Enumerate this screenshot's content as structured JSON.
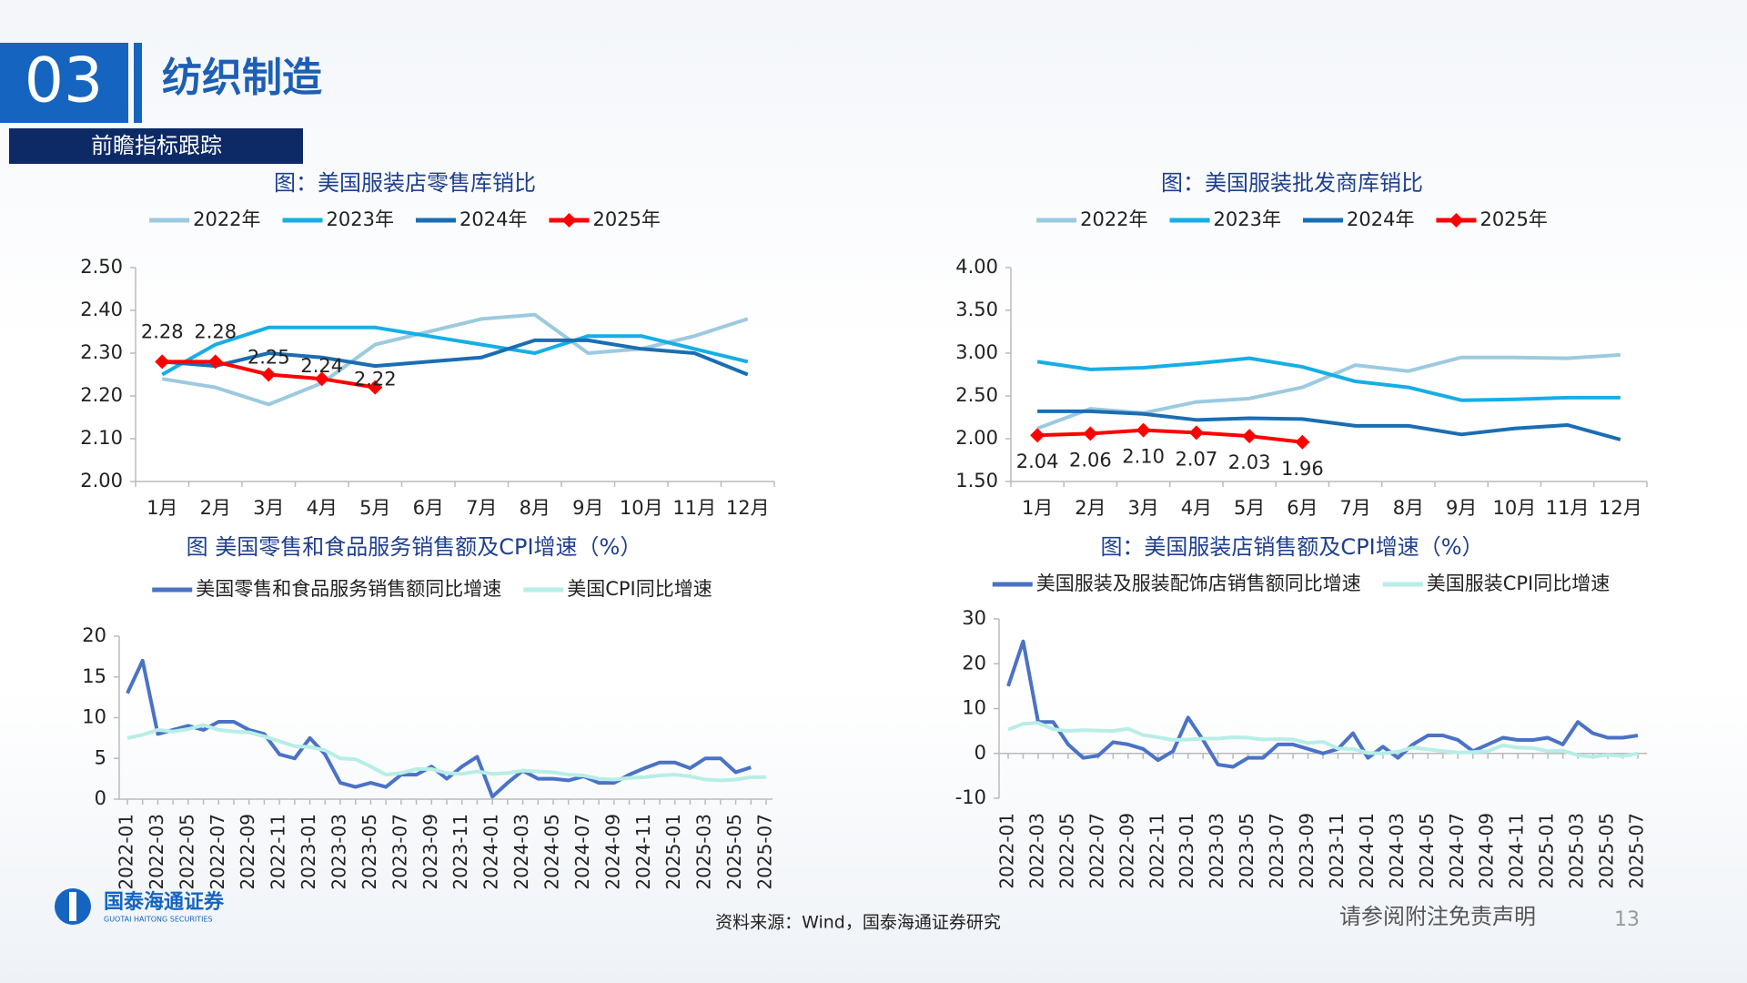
{
  "header": {
    "number": "03",
    "title": "纺织制造",
    "subtitle": "前瞻指标跟踪"
  },
  "footer": {
    "source": "资料来源：Wind，国泰海通证券研究",
    "disclaimer": "请参阅附注免责声明",
    "page": "13",
    "logo_cn": "国泰海通证券",
    "logo_en": "GUOTAI HAITONG SECURITIES"
  },
  "chart_data": [
    {
      "type": "line",
      "title": "图：美国服装店零售库销比",
      "categories": [
        "1月",
        "2月",
        "3月",
        "4月",
        "5月",
        "6月",
        "7月",
        "8月",
        "9月",
        "10月",
        "11月",
        "12月"
      ],
      "ylim": [
        2.0,
        2.5
      ],
      "yticks": [
        {
          "value": 2.0,
          "label": "2.00"
        },
        {
          "value": 2.1,
          "label": "2.10"
        },
        {
          "value": 2.2,
          "label": "2.20"
        },
        {
          "value": 2.3,
          "label": "2.30"
        },
        {
          "value": 2.4,
          "label": "2.40"
        },
        {
          "value": 2.5,
          "label": "2.50"
        }
      ],
      "series": [
        {
          "name": "2022年",
          "color": "#9ccadf",
          "values": [
            2.24,
            2.22,
            2.18,
            2.23,
            2.32,
            2.35,
            2.38,
            2.39,
            2.3,
            2.31,
            2.34,
            2.38
          ]
        },
        {
          "name": "2023年",
          "color": "#17aee6",
          "values": [
            2.25,
            2.32,
            2.36,
            2.36,
            2.36,
            2.34,
            2.32,
            2.3,
            2.34,
            2.34,
            2.31,
            2.28
          ]
        },
        {
          "name": "2024年",
          "color": "#1b6db3",
          "values": [
            2.28,
            2.27,
            2.3,
            2.29,
            2.27,
            2.28,
            2.29,
            2.33,
            2.33,
            2.31,
            2.3,
            2.25
          ]
        },
        {
          "name": "2025年",
          "color": "#ff0000",
          "marker": "diamond",
          "values": [
            2.28,
            2.28,
            2.25,
            2.24,
            2.22,
            null,
            null,
            null,
            null,
            null,
            null,
            null
          ]
        }
      ]
    },
    {
      "type": "line",
      "title": "图：美国服装批发商库销比",
      "categories": [
        "1月",
        "2月",
        "3月",
        "4月",
        "5月",
        "6月",
        "7月",
        "8月",
        "9月",
        "10月",
        "11月",
        "12月"
      ],
      "ylim": [
        1.5,
        4.0
      ],
      "yticks": [
        {
          "value": 1.5,
          "label": "1.50"
        },
        {
          "value": 2.0,
          "label": "2.00"
        },
        {
          "value": 2.5,
          "label": "2.50"
        },
        {
          "value": 3.0,
          "label": "3.00"
        },
        {
          "value": 3.5,
          "label": "3.50"
        },
        {
          "value": 4.0,
          "label": "4.00"
        }
      ],
      "series": [
        {
          "name": "2022年",
          "color": "#9ccadf",
          "values": [
            2.12,
            2.35,
            2.3,
            2.43,
            2.47,
            2.6,
            2.86,
            2.79,
            2.95,
            2.95,
            2.94,
            2.98
          ]
        },
        {
          "name": "2023年",
          "color": "#17aee6",
          "values": [
            2.9,
            2.81,
            2.83,
            2.88,
            2.94,
            2.84,
            2.67,
            2.6,
            2.45,
            2.46,
            2.48,
            2.48
          ]
        },
        {
          "name": "2024年",
          "color": "#1b6db3",
          "values": [
            2.32,
            2.32,
            2.29,
            2.22,
            2.24,
            2.23,
            2.15,
            2.15,
            2.05,
            2.12,
            2.16,
            1.99
          ]
        },
        {
          "name": "2025年",
          "color": "#ff0000",
          "marker": "diamond",
          "values": [
            2.04,
            2.06,
            2.1,
            2.07,
            2.03,
            1.96,
            null,
            null,
            null,
            null,
            null,
            null
          ],
          "value_labels": [
            "2.04",
            "2.06",
            "2.10",
            "2.07",
            "2.03",
            "1.96",
            null,
            null,
            null,
            null,
            null,
            null
          ]
        }
      ]
    },
    {
      "type": "line",
      "title": "图 美国零售和食品服务销售额及CPI增速（%）",
      "categories": [
        "2022-01",
        null,
        "2022-03",
        null,
        "2022-05",
        null,
        "2022-07",
        null,
        "2022-09",
        null,
        "2022-11",
        null,
        "2023-01",
        null,
        "2023-03",
        null,
        "2023-05",
        null,
        "2023-07",
        null,
        "2023-09",
        null,
        "2023-11",
        null,
        "2024-01",
        null,
        "2024-03",
        null,
        "2024-05",
        null,
        "2024-07",
        null,
        "2024-09",
        null,
        "2024-11",
        null,
        "2025-01",
        null,
        "2025-03",
        null,
        "2025-05",
        null,
        "2025-07"
      ],
      "ylim": [
        0,
        20
      ],
      "yticks": [
        0,
        5,
        10,
        15,
        20
      ],
      "series": [
        {
          "name": "美国零售和食品服务销售额同比增速",
          "color": "#4a72c6",
          "values": [
            13,
            17,
            8,
            8.5,
            9,
            8.5,
            9.5,
            9.5,
            8.5,
            8,
            5.5,
            5,
            7.5,
            5.5,
            2,
            1.5,
            2,
            1.5,
            3,
            3,
            4,
            2.5,
            4,
            5.2,
            0.3,
            2,
            3.5,
            2.5,
            2.5,
            2.3,
            2.8,
            2,
            2,
            3,
            3.8,
            4.5,
            4.5,
            3.8,
            5,
            5,
            3.3,
            3.9,
            null
          ]
        },
        {
          "name": "美国CPI同比增速",
          "color": "#b7eee6",
          "values": [
            7.5,
            7.9,
            8.5,
            8.3,
            8.6,
            9.1,
            8.5,
            8.3,
            8.2,
            7.7,
            7.1,
            6.5,
            6.4,
            6.0,
            5.0,
            4.9,
            4.0,
            3.0,
            3.2,
            3.7,
            3.7,
            3.2,
            3.1,
            3.4,
            3.1,
            3.2,
            3.5,
            3.4,
            3.3,
            3.0,
            2.9,
            2.5,
            2.4,
            2.6,
            2.7,
            2.9,
            3.0,
            2.8,
            2.4,
            2.3,
            2.4,
            2.7,
            2.7
          ]
        }
      ]
    },
    {
      "type": "line",
      "title": "图：美国服装店销售额及CPI增速（%）",
      "categories": [
        "2022-01",
        null,
        "2022-03",
        null,
        "2022-05",
        null,
        "2022-07",
        null,
        "2022-09",
        null,
        "2022-11",
        null,
        "2023-01",
        null,
        "2023-03",
        null,
        "2023-05",
        null,
        "2023-07",
        null,
        "2023-09",
        null,
        "2023-11",
        null,
        "2024-01",
        null,
        "2024-03",
        null,
        "2024-05",
        null,
        "2024-07",
        null,
        "2024-09",
        null,
        "2024-11",
        null,
        "2025-01",
        null,
        "2025-03",
        null,
        "2025-05",
        null,
        "2025-07"
      ],
      "ylim": [
        -10,
        30
      ],
      "yticks": [
        -10,
        0,
        10,
        20,
        30
      ],
      "series": [
        {
          "name": "美国服装及服装配饰店销售额同比增速",
          "color": "#4a72c6",
          "values": [
            15,
            25,
            7,
            7,
            2,
            -1,
            -0.5,
            2.5,
            2,
            1,
            -1.5,
            0.5,
            8,
            3,
            -2.5,
            -3,
            -1,
            -1,
            2,
            2,
            1,
            0,
            1,
            4.5,
            -1,
            1.5,
            -1,
            2,
            4,
            4,
            3,
            0.5,
            2,
            3.5,
            3,
            3,
            3.5,
            2,
            7,
            4.5,
            3.5,
            3.5,
            4
          ]
        },
        {
          "name": "美国服装CPI同比增速",
          "color": "#b7eee6",
          "values": [
            5.3,
            6.6,
            6.8,
            5.4,
            5.0,
            5.2,
            5.1,
            5.0,
            5.5,
            4.1,
            3.6,
            3.0,
            3.1,
            3.3,
            3.3,
            3.6,
            3.5,
            3.1,
            3.2,
            3.1,
            2.3,
            2.6,
            1.1,
            1.0,
            0.1,
            0,
            0.4,
            1.3,
            0.9,
            0.5,
            0.2,
            0.3,
            0.5,
            1.8,
            1.3,
            1.2,
            0.5,
            0.6,
            -0.4,
            -0.8,
            -0.3,
            -0.6,
            0
          ]
        }
      ]
    }
  ]
}
